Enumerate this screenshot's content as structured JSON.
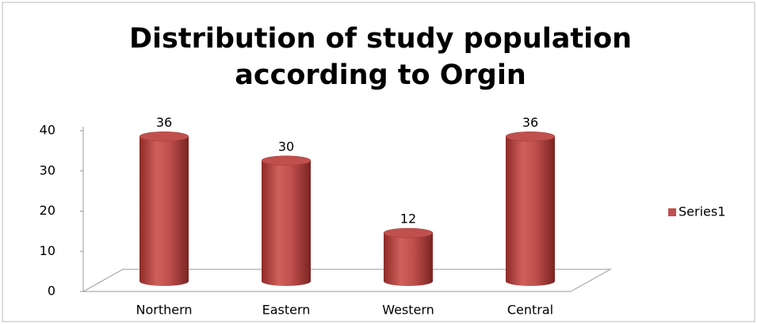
{
  "chart_data": {
    "type": "bar",
    "title": "Distribution of study population according to Orgin",
    "categories": [
      "Northern",
      "Eastern",
      "Western",
      "Central"
    ],
    "series": [
      {
        "name": "Series1",
        "color": "#c0504d",
        "values": [
          36,
          30,
          12,
          36
        ]
      }
    ],
    "ylim": [
      0,
      40
    ],
    "yticks": [
      0,
      10,
      20,
      30,
      40
    ],
    "grid": false,
    "legend": "right"
  }
}
